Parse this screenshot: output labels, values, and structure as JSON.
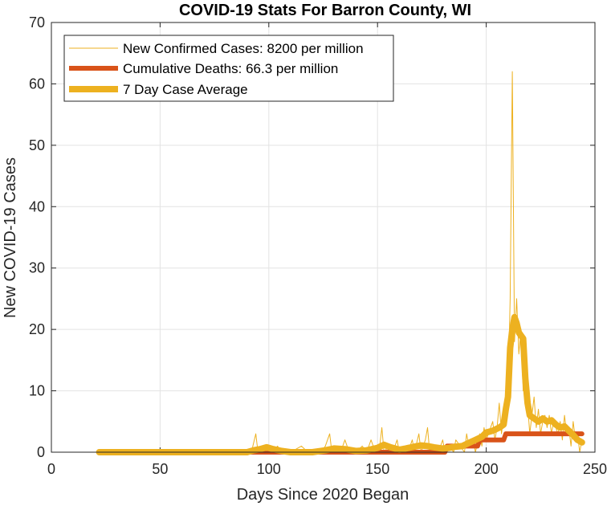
{
  "chart_data": {
    "type": "line",
    "title": "COVID-19 Stats For Barron County, WI",
    "xlabel": "Days Since 2020 Began",
    "ylabel": "New COVID-19 Cases",
    "xlim": [
      0,
      250
    ],
    "ylim": [
      0,
      70
    ],
    "xticks": [
      0,
      50,
      100,
      150,
      200,
      250
    ],
    "yticks": [
      0,
      10,
      20,
      30,
      40,
      50,
      60,
      70
    ],
    "grid": true,
    "legend_position": "top-left",
    "series": [
      {
        "name": "New Confirmed Cases: 8200 per million",
        "color": "#EDB120",
        "style": "thin",
        "points": [
          [
            22,
            0
          ],
          [
            40,
            0
          ],
          [
            60,
            0
          ],
          [
            80,
            0
          ],
          [
            92,
            0
          ],
          [
            94,
            3
          ],
          [
            95,
            0
          ],
          [
            97,
            1
          ],
          [
            99,
            0
          ],
          [
            100,
            1
          ],
          [
            102,
            0
          ],
          [
            104,
            1
          ],
          [
            106,
            0
          ],
          [
            110,
            0
          ],
          [
            115,
            1
          ],
          [
            118,
            0
          ],
          [
            120,
            0
          ],
          [
            124,
            0
          ],
          [
            126,
            1
          ],
          [
            128,
            3
          ],
          [
            129,
            0
          ],
          [
            131,
            1
          ],
          [
            133,
            0
          ],
          [
            135,
            2
          ],
          [
            137,
            0
          ],
          [
            140,
            0
          ],
          [
            143,
            1
          ],
          [
            145,
            0
          ],
          [
            147,
            2
          ],
          [
            149,
            0
          ],
          [
            151,
            1
          ],
          [
            152,
            4
          ],
          [
            153,
            0
          ],
          [
            155,
            1
          ],
          [
            157,
            0
          ],
          [
            159,
            2
          ],
          [
            160,
            0
          ],
          [
            162,
            1
          ],
          [
            164,
            0
          ],
          [
            166,
            2
          ],
          [
            167,
            0
          ],
          [
            169,
            3
          ],
          [
            170,
            0
          ],
          [
            172,
            2
          ],
          [
            173,
            4
          ],
          [
            174,
            0
          ],
          [
            176,
            1
          ],
          [
            178,
            0
          ],
          [
            180,
            2
          ],
          [
            181,
            0
          ],
          [
            183,
            1
          ],
          [
            185,
            0
          ],
          [
            186,
            2
          ],
          [
            188,
            1
          ],
          [
            190,
            0
          ],
          [
            191,
            3
          ],
          [
            192,
            1
          ],
          [
            194,
            2
          ],
          [
            195,
            0
          ],
          [
            197,
            3
          ],
          [
            198,
            1
          ],
          [
            199,
            4
          ],
          [
            200,
            2
          ],
          [
            201,
            3
          ],
          [
            203,
            5
          ],
          [
            204,
            2
          ],
          [
            205,
            4
          ],
          [
            206,
            8
          ],
          [
            207,
            3
          ],
          [
            208,
            6
          ],
          [
            209,
            7
          ],
          [
            210,
            9
          ],
          [
            211,
            25
          ],
          [
            212,
            62
          ],
          [
            213,
            18
          ],
          [
            214,
            25
          ],
          [
            215,
            16
          ],
          [
            216,
            20
          ],
          [
            217,
            10
          ],
          [
            218,
            12
          ],
          [
            219,
            8
          ],
          [
            220,
            3
          ],
          [
            221,
            6
          ],
          [
            222,
            9
          ],
          [
            223,
            4
          ],
          [
            224,
            7
          ],
          [
            225,
            3
          ],
          [
            226,
            5
          ],
          [
            227,
            6
          ],
          [
            228,
            4
          ],
          [
            229,
            6
          ],
          [
            230,
            3
          ],
          [
            231,
            5
          ],
          [
            232,
            4
          ],
          [
            233,
            3
          ],
          [
            234,
            5
          ],
          [
            235,
            2
          ],
          [
            236,
            6
          ],
          [
            237,
            3
          ],
          [
            238,
            4
          ],
          [
            239,
            1
          ],
          [
            240,
            5
          ],
          [
            241,
            2
          ],
          [
            242,
            3
          ],
          [
            243,
            0
          ],
          [
            244,
            2
          ]
        ]
      },
      {
        "name": "Cumulative Deaths: 66.3 per million",
        "color": "#D95319",
        "style": "thick",
        "points": [
          [
            22,
            0
          ],
          [
            181,
            0
          ],
          [
            182,
            1
          ],
          [
            196,
            1
          ],
          [
            197,
            2
          ],
          [
            208,
            2
          ],
          [
            209,
            3
          ],
          [
            244,
            3
          ]
        ]
      },
      {
        "name": "7 Day Case Average",
        "color": "#EDB120",
        "style": "thicker",
        "points": [
          [
            22,
            0
          ],
          [
            60,
            0
          ],
          [
            90,
            0
          ],
          [
            93,
            0.3
          ],
          [
            96,
            0.5
          ],
          [
            99,
            0.8
          ],
          [
            102,
            0.5
          ],
          [
            106,
            0.2
          ],
          [
            110,
            0
          ],
          [
            120,
            0
          ],
          [
            126,
            0.3
          ],
          [
            130,
            0.6
          ],
          [
            135,
            0.5
          ],
          [
            140,
            0.2
          ],
          [
            145,
            0.3
          ],
          [
            150,
            0.7
          ],
          [
            153,
            1.2
          ],
          [
            156,
            0.8
          ],
          [
            160,
            0.4
          ],
          [
            163,
            0.6
          ],
          [
            167,
            0.9
          ],
          [
            170,
            1.1
          ],
          [
            173,
            1.0
          ],
          [
            176,
            0.8
          ],
          [
            180,
            0.6
          ],
          [
            183,
            0.7
          ],
          [
            186,
            0.9
          ],
          [
            189,
            1.0
          ],
          [
            192,
            1.5
          ],
          [
            195,
            2.0
          ],
          [
            198,
            2.5
          ],
          [
            200,
            3.2
          ],
          [
            203,
            3.5
          ],
          [
            206,
            4.0
          ],
          [
            208,
            4.5
          ],
          [
            209,
            7
          ],
          [
            210,
            9
          ],
          [
            211,
            17
          ],
          [
            212,
            20
          ],
          [
            213,
            22
          ],
          [
            214,
            21
          ],
          [
            215,
            19.5
          ],
          [
            216,
            19
          ],
          [
            217,
            18.5
          ],
          [
            218,
            12
          ],
          [
            219,
            8
          ],
          [
            220,
            6
          ],
          [
            222,
            5.5
          ],
          [
            224,
            5.0
          ],
          [
            226,
            5.5
          ],
          [
            228,
            5.0
          ],
          [
            230,
            5.2
          ],
          [
            232,
            4.5
          ],
          [
            234,
            4.0
          ],
          [
            236,
            4.2
          ],
          [
            238,
            3.5
          ],
          [
            240,
            2.8
          ],
          [
            242,
            2.0
          ],
          [
            244,
            1.6
          ]
        ]
      }
    ]
  }
}
